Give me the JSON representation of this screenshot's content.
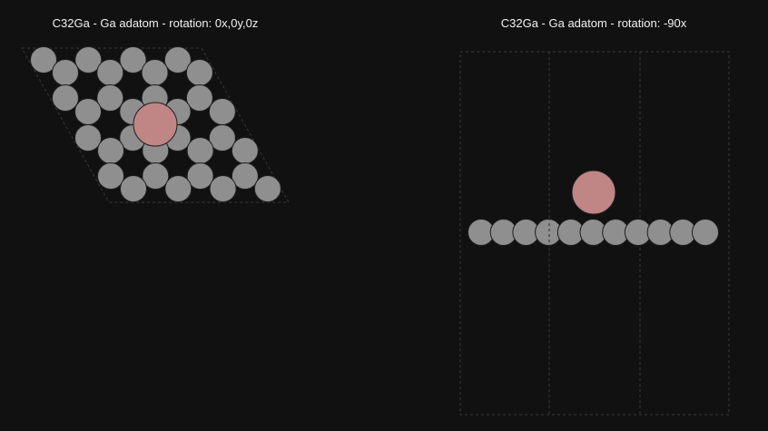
{
  "panels": [
    {
      "title": "C32Ga - Ga adatom - rotation: 0x,0y,0z",
      "view": "top"
    },
    {
      "title": "C32Ga - Ga adatom - rotation: -90x",
      "view": "side"
    }
  ],
  "colors": {
    "background": "#111111",
    "carbon": "#8f8f8f",
    "gallium": "#c08585",
    "atom_outline": "#1e1e1e",
    "cell_line": "#3a3a3a"
  }
}
